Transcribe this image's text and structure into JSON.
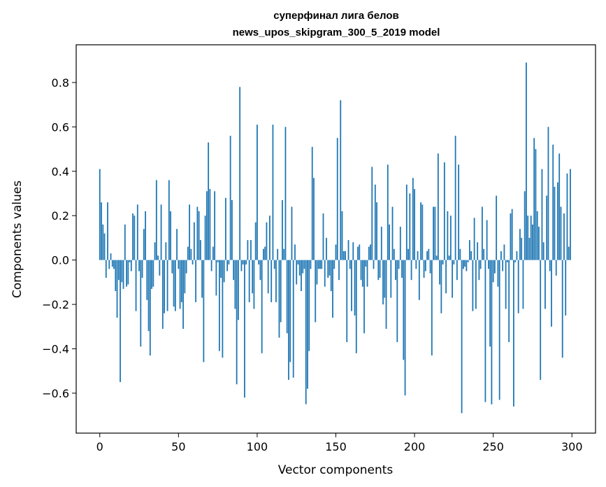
{
  "chart_data": {
    "type": "bar",
    "title": "суперфинал лига белов",
    "subtitle": "news_upos_skipgram_300_5_2019 model",
    "xlabel": "Vector components",
    "ylabel": "Components values",
    "xlim": [
      -15,
      315
    ],
    "ylim": [
      -0.78,
      0.97
    ],
    "x_ticks": [
      0,
      50,
      100,
      150,
      200,
      250,
      300
    ],
    "x_tick_labels": [
      "0",
      "50",
      "100",
      "150",
      "200",
      "250",
      "300"
    ],
    "y_ticks": [
      -0.6,
      -0.4,
      -0.2,
      0.0,
      0.2,
      0.4,
      0.6,
      0.8
    ],
    "y_tick_labels": [
      "−0.6",
      "−0.4",
      "−0.2",
      "0.0",
      "0.2",
      "0.4",
      "0.6",
      "0.8"
    ],
    "grid": false,
    "bar_color": "#1f77b4",
    "x": [
      0,
      1,
      2,
      3,
      4,
      5,
      6,
      7,
      8,
      9,
      10,
      11,
      12,
      13,
      14,
      15,
      16,
      17,
      18,
      19,
      20,
      21,
      22,
      23,
      24,
      25,
      26,
      27,
      28,
      29,
      30,
      31,
      32,
      33,
      34,
      35,
      36,
      37,
      38,
      39,
      40,
      41,
      42,
      43,
      44,
      45,
      46,
      47,
      48,
      49,
      50,
      51,
      52,
      53,
      54,
      55,
      56,
      57,
      58,
      59,
      60,
      61,
      62,
      63,
      64,
      65,
      66,
      67,
      68,
      69,
      70,
      71,
      72,
      73,
      74,
      75,
      76,
      77,
      78,
      79,
      80,
      81,
      82,
      83,
      84,
      85,
      86,
      87,
      88,
      89,
      90,
      91,
      92,
      93,
      94,
      95,
      96,
      97,
      98,
      99,
      100,
      101,
      102,
      103,
      104,
      105,
      106,
      107,
      108,
      109,
      110,
      111,
      112,
      113,
      114,
      115,
      116,
      117,
      118,
      119,
      120,
      121,
      122,
      123,
      124,
      125,
      126,
      127,
      128,
      129,
      130,
      131,
      132,
      133,
      134,
      135,
      136,
      137,
      138,
      139,
      140,
      141,
      142,
      143,
      144,
      145,
      146,
      147,
      148,
      149,
      150,
      151,
      152,
      153,
      154,
      155,
      156,
      157,
      158,
      159,
      160,
      161,
      162,
      163,
      164,
      165,
      166,
      167,
      168,
      169,
      170,
      171,
      172,
      173,
      174,
      175,
      176,
      177,
      178,
      179,
      180,
      181,
      182,
      183,
      184,
      185,
      186,
      187,
      188,
      189,
      190,
      191,
      192,
      193,
      194,
      195,
      196,
      197,
      198,
      199,
      200,
      201,
      202,
      203,
      204,
      205,
      206,
      207,
      208,
      209,
      210,
      211,
      212,
      213,
      214,
      215,
      216,
      217,
      218,
      219,
      220,
      221,
      222,
      223,
      224,
      225,
      226,
      227,
      228,
      229,
      230,
      231,
      232,
      233,
      234,
      235,
      236,
      237,
      238,
      239,
      240,
      241,
      242,
      243,
      244,
      245,
      246,
      247,
      248,
      249,
      250,
      251,
      252,
      253,
      254,
      255,
      256,
      257,
      258,
      259,
      260,
      261,
      262,
      263,
      264,
      265,
      266,
      267,
      268,
      269,
      270,
      271,
      272,
      273,
      274,
      275,
      276,
      277,
      278,
      279,
      280,
      281,
      282,
      283,
      284,
      285,
      286,
      287,
      288,
      289,
      290,
      291,
      292,
      293,
      294,
      295,
      296,
      297,
      298,
      299
    ],
    "values": [
      0.41,
      0.26,
      0.16,
      0.12,
      -0.08,
      0.26,
      -0.04,
      0.03,
      -0.03,
      -0.04,
      -0.14,
      -0.26,
      -0.09,
      -0.55,
      -0.1,
      -0.13,
      0.16,
      -0.12,
      -0.11,
      -0.01,
      -0.05,
      0.21,
      0.2,
      -0.23,
      0.25,
      -0.05,
      -0.39,
      -0.08,
      0.14,
      0.22,
      -0.18,
      -0.32,
      -0.43,
      -0.13,
      -0.12,
      0.08,
      0.36,
      0.02,
      -0.07,
      0.25,
      -0.31,
      -0.24,
      0.08,
      -0.23,
      0.36,
      0.22,
      -0.06,
      -0.21,
      -0.23,
      0.14,
      -0.04,
      -0.22,
      -0.19,
      -0.31,
      -0.15,
      -0.06,
      0.06,
      0.25,
      0.05,
      -0.02,
      0.17,
      -0.19,
      0.24,
      0.22,
      0.09,
      -0.17,
      -0.46,
      0.2,
      0.31,
      0.53,
      0.32,
      -0.05,
      0.06,
      0.31,
      -0.16,
      -0.01,
      -0.41,
      -0.08,
      -0.44,
      -0.1,
      0.28,
      -0.05,
      -0.02,
      0.56,
      0.27,
      -0.09,
      -0.22,
      -0.56,
      -0.27,
      0.78,
      -0.05,
      -0.02,
      -0.62,
      -0.02,
      0.09,
      -0.19,
      0.09,
      -0.15,
      -0.22,
      0.17,
      0.61,
      -0.02,
      -0.09,
      -0.42,
      0.05,
      0.06,
      0.17,
      -0.15,
      0.2,
      -0.19,
      0.61,
      -0.04,
      -0.19,
      0.05,
      -0.35,
      -0.28,
      0.27,
      0.05,
      0.6,
      -0.33,
      -0.54,
      -0.46,
      0.24,
      -0.53,
      0.07,
      -0.11,
      -0.02,
      -0.07,
      -0.14,
      -0.06,
      -0.04,
      -0.65,
      -0.58,
      -0.41,
      -0.04,
      0.51,
      0.37,
      -0.28,
      -0.11,
      -0.04,
      -0.04,
      -0.04,
      0.21,
      -0.12,
      0.1,
      -0.08,
      -0.07,
      -0.14,
      -0.26,
      -0.04,
      0.07,
      0.55,
      -0.09,
      0.72,
      0.22,
      0.04,
      0.04,
      -0.37,
      0.09,
      -0.04,
      -0.23,
      0.08,
      -0.25,
      -0.42,
      0.06,
      0.07,
      -0.09,
      -0.12,
      -0.33,
      -0.03,
      -0.12,
      0.06,
      0.07,
      0.42,
      -0.04,
      0.34,
      0.26,
      -0.09,
      -0.08,
      0.15,
      -0.2,
      -0.17,
      -0.31,
      0.43,
      0.16,
      -0.17,
      0.24,
      0.05,
      -0.09,
      -0.37,
      -0.04,
      0.15,
      -0.08,
      -0.45,
      -0.61,
      0.34,
      0.05,
      0.3,
      -0.09,
      0.37,
      0.32,
      -0.04,
      0.04,
      -0.18,
      0.26,
      0.25,
      -0.08,
      -0.05,
      0.04,
      0.05,
      -0.06,
      -0.43,
      0.24,
      0.24,
      0.02,
      0.48,
      -0.11,
      -0.24,
      -0.02,
      0.44,
      -0.15,
      0.22,
      0.02,
      0.2,
      -0.17,
      -0.02,
      0.56,
      -0.09,
      0.43,
      0.05,
      -0.69,
      -0.04,
      -0.03,
      -0.05,
      -0.01,
      0.09,
      0.04,
      -0.23,
      0.19,
      -0.22,
      0.08,
      -0.09,
      -0.04,
      0.24,
      0.05,
      -0.64,
      0.18,
      -0.04,
      -0.39,
      -0.65,
      -0.1,
      -0.06,
      0.29,
      -0.12,
      -0.63,
      0.04,
      -0.05,
      0.07,
      -0.22,
      -0.01,
      -0.37,
      0.21,
      0.23,
      -0.66,
      -0.01,
      0.04,
      -0.24,
      0.14,
      0.1,
      -0.22,
      0.31,
      0.89,
      0.2,
      0.1,
      0.2,
      0.16,
      0.55,
      0.5,
      0.22,
      0.15,
      -0.54,
      0.41,
      0.08,
      -0.22,
      0.29,
      0.6,
      -0.05,
      -0.3,
      0.52,
      0.33,
      -0.07,
      0.35,
      0.48,
      0.24,
      -0.44,
      0.21,
      -0.25,
      0.39,
      0.06,
      0.41
    ]
  }
}
